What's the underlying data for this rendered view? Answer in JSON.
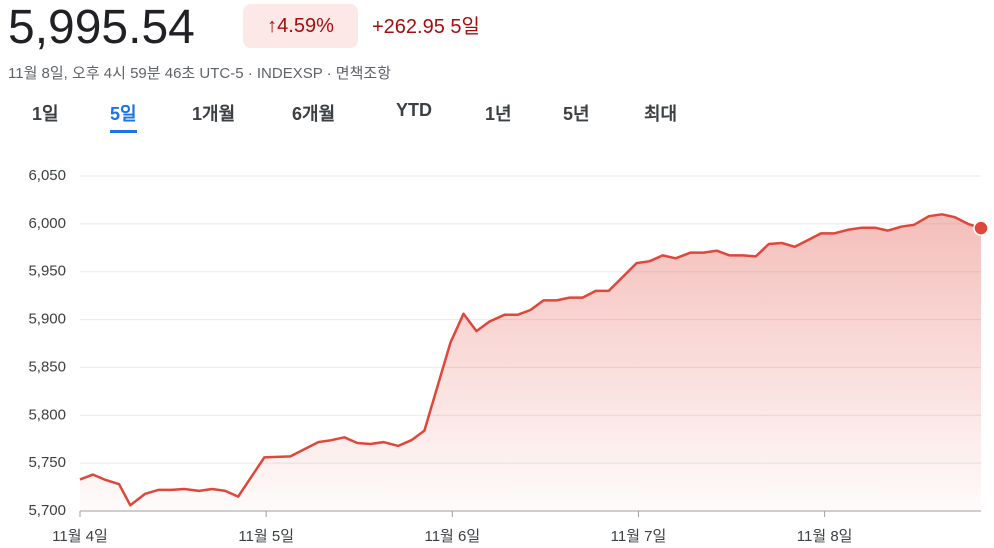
{
  "header": {
    "price": "5,995.54",
    "percent_change": "4.59%",
    "change": "+262.95",
    "period": "5일",
    "subtitle": "11월 8일, 오후 4시 59분 46초 UTC-5 · INDEXSP · 면책조항"
  },
  "tabs": {
    "items": [
      "1일",
      "5일",
      "1개월",
      "6개월",
      "YTD",
      "1년",
      "5년",
      "최대"
    ],
    "active": 1
  },
  "chart_data": {
    "type": "area-line",
    "color": "#e0463a",
    "grid": true,
    "x": [
      0,
      0.07,
      0.13,
      0.21,
      0.27,
      0.35,
      0.42,
      0.49,
      0.56,
      0.64,
      0.71,
      0.78,
      0.85,
      0.99,
      1.13,
      1.21,
      1.28,
      1.35,
      1.42,
      1.49,
      1.56,
      1.63,
      1.71,
      1.78,
      1.85,
      1.99,
      2.06,
      2.13,
      2.2,
      2.28,
      2.35,
      2.42,
      2.49,
      2.56,
      2.63,
      2.7,
      2.77,
      2.84,
      2.99,
      3.06,
      3.13,
      3.2,
      3.28,
      3.35,
      3.42,
      3.49,
      3.56,
      3.63,
      3.7,
      3.77,
      3.84,
      3.91,
      3.98,
      4.05,
      4.13,
      4.2,
      4.27,
      4.34,
      4.41,
      4.48,
      4.56,
      4.63,
      4.7,
      4.77,
      4.84
    ],
    "values": [
      5733,
      5738,
      5733,
      5728,
      5706,
      5718,
      5722,
      5722,
      5723,
      5721,
      5723,
      5721,
      5715,
      5756,
      5757,
      5765,
      5772,
      5774,
      5777,
      5771,
      5770,
      5772,
      5768,
      5774,
      5784,
      5876,
      5906,
      5888,
      5898,
      5905,
      5905,
      5910,
      5920,
      5920,
      5923,
      5923,
      5930,
      5930,
      5959,
      5961,
      5967,
      5964,
      5970,
      5970,
      5972,
      5967,
      5967,
      5966,
      5979,
      5980,
      5976,
      5983,
      5990,
      5990,
      5994,
      5996,
      5996,
      5993,
      5997,
      5999,
      6008,
      6010,
      6007,
      6000,
      5995.54
    ],
    "xlim": [
      0,
      4.84
    ],
    "xticks": [
      {
        "value": 0,
        "label": "11월 4일"
      },
      {
        "value": 1,
        "label": "11월 5일"
      },
      {
        "value": 2,
        "label": "11월 6일"
      },
      {
        "value": 3,
        "label": "11월 7일"
      },
      {
        "value": 4,
        "label": "11월 8일"
      }
    ],
    "ylim": [
      5700,
      6050
    ],
    "yticks": [
      {
        "value": 5700,
        "label": "5,700"
      },
      {
        "value": 5750,
        "label": "5,750"
      },
      {
        "value": 5800,
        "label": "5,800"
      },
      {
        "value": 5850,
        "label": "5,850"
      },
      {
        "value": 5900,
        "label": "5,900"
      },
      {
        "value": 5950,
        "label": "5,950"
      },
      {
        "value": 6000,
        "label": "6,000"
      },
      {
        "value": 6050,
        "label": "6,050"
      }
    ]
  }
}
